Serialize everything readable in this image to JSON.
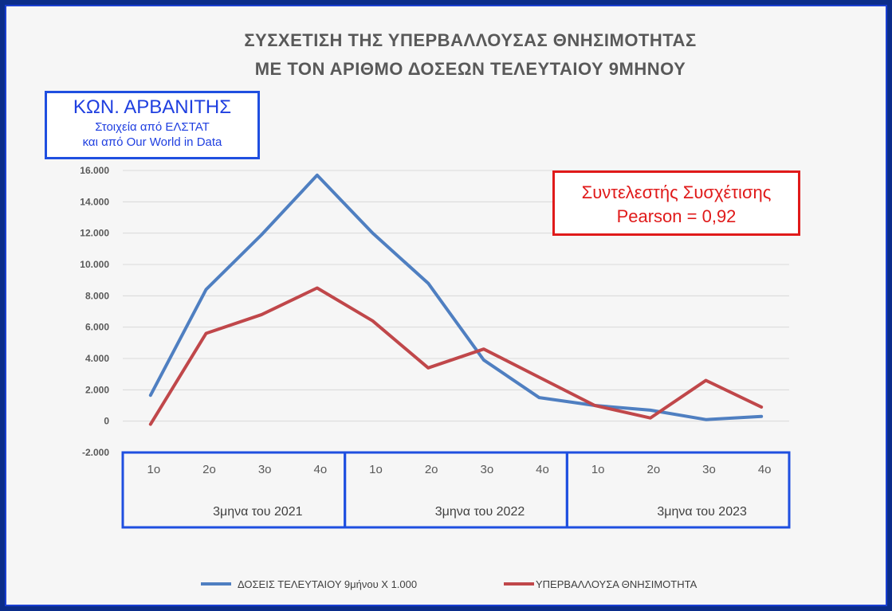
{
  "title": {
    "line1": "ΣΥΣΧΕΤΙΣΗ ΤΗΣ ΥΠΕΡΒΑΛΛΟΥΣΑΣ ΘΝΗΣΙΜΟΤΗΤΑΣ",
    "line2": "ΜΕ ΤΟΝ ΑΡΙΘΜΟ ΔΟΣΕΩΝ ΤΕΛΕΥΤΑΙΟΥ 9ΜΗΝΟΥ"
  },
  "author_box": {
    "name": "ΚΩΝ. ΑΡΒΑΝΙΤΗΣ",
    "source1": "Στοιχεία από ΕΛΣΤΑΤ",
    "source2": "και από Our World in Data"
  },
  "pearson_box": {
    "line1": "Συντελεστής Συσχέτισης",
    "line2": "Pearson = 0,92"
  },
  "colors": {
    "blue_series": "#4f7fc1",
    "red_series": "#c0474a",
    "box_blue": "#1f4fe0",
    "box_red": "#e01a1a"
  },
  "chart_data": {
    "type": "line",
    "categories": [
      "1ο",
      "2ο",
      "3ο",
      "4ο",
      "1ο",
      "2ο",
      "3ο",
      "4ο",
      "1ο",
      "2ο",
      "3ο",
      "4ο"
    ],
    "groups": [
      {
        "label": "3μηνα του 2021",
        "count": 4
      },
      {
        "label": "3μηνα του 2022",
        "count": 4
      },
      {
        "label": "3μηνα του 2023",
        "count": 4
      }
    ],
    "ylim": [
      -2000,
      16000
    ],
    "yticks": [
      "-2.000",
      "0",
      "2.000",
      "4.000",
      "6.000",
      "8.000",
      "10.000",
      "12.000",
      "14.000",
      "16.000"
    ],
    "ytick_values": [
      -2000,
      0,
      2000,
      4000,
      6000,
      8000,
      10000,
      12000,
      14000,
      16000
    ],
    "grid": true,
    "legend_position": "bottom",
    "series": [
      {
        "name": "ΔΟΣΕΙΣ ΤΕΛΕΥΤΑΙΟΥ 9μήνου Χ 1.000",
        "color": "#4f7fc1",
        "values": [
          1650,
          8400,
          11900,
          15700,
          12000,
          8800,
          3900,
          1500,
          1000,
          700,
          100,
          300
        ]
      },
      {
        "name": "ΥΠΕΡΒΑΛΛΟΥΣΑ ΘΝΗΣΙΜΟΤΗΤΑ",
        "color": "#c0474a",
        "values": [
          -200,
          5600,
          6800,
          8500,
          6400,
          3400,
          4600,
          2800,
          1000,
          200,
          2600,
          900
        ]
      }
    ]
  }
}
